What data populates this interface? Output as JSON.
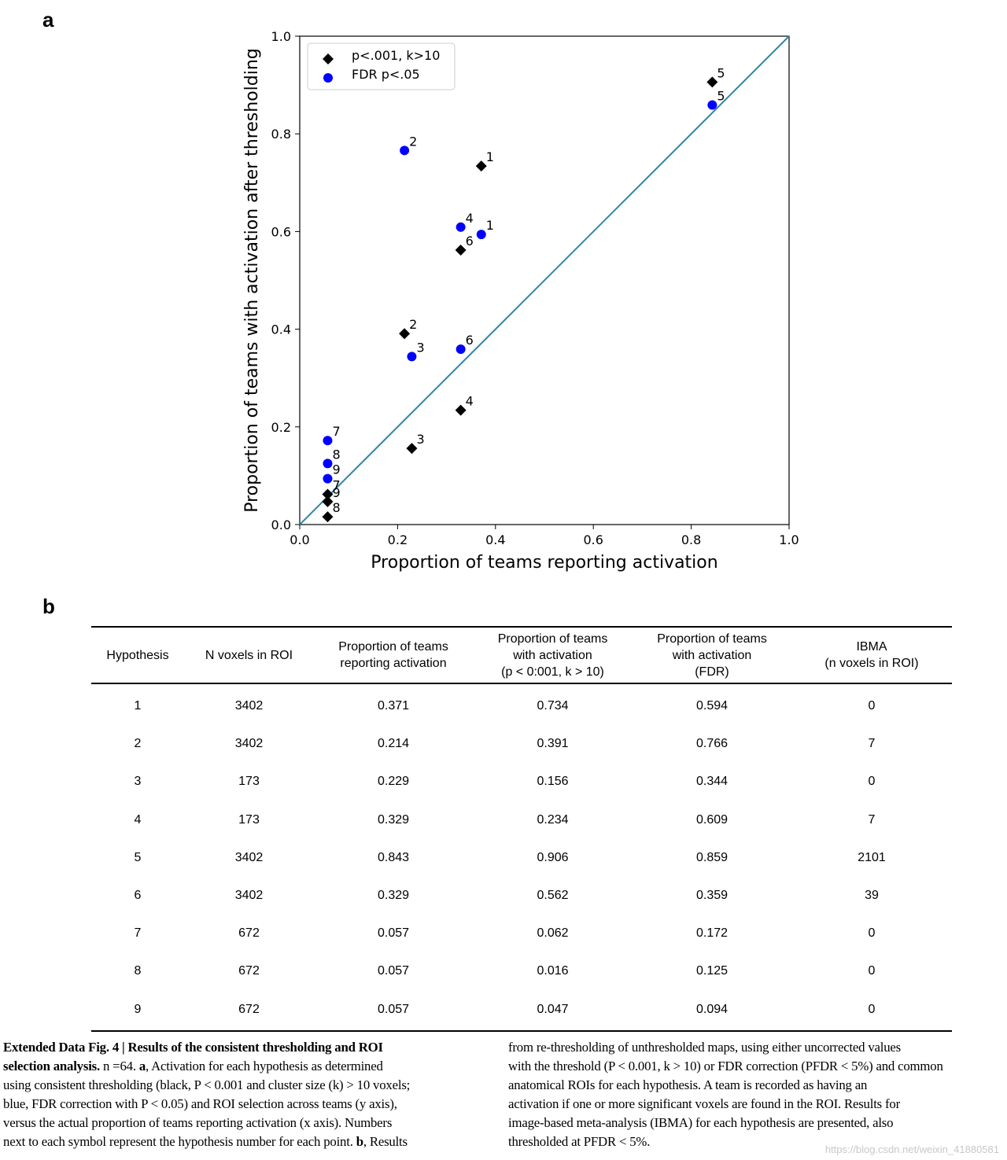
{
  "panel_labels": {
    "a": "a",
    "b": "b"
  },
  "colors": {
    "black_series": "#000000",
    "blue_series": "#0000ff",
    "identity_line": "#2e86ab"
  },
  "chart_data": {
    "type": "scatter",
    "xlabel": "Proportion of teams reporting activation",
    "ylabel": "Proportion of teams with activation after thresholding",
    "xlim": [
      0.0,
      1.0
    ],
    "ylim": [
      0.0,
      1.0
    ],
    "x_ticks": [
      "0.0",
      "0.2",
      "0.4",
      "0.6",
      "0.8",
      "1.0"
    ],
    "y_ticks": [
      "0.0",
      "0.2",
      "0.4",
      "0.6",
      "0.8",
      "1.0"
    ],
    "grid": false,
    "legend_position": "top-left",
    "identity_line": true,
    "series": [
      {
        "name": "p<.001, k>10",
        "marker": "diamond",
        "color": "#000000",
        "points": [
          {
            "label": "1",
            "x": 0.371,
            "y": 0.734
          },
          {
            "label": "2",
            "x": 0.214,
            "y": 0.391
          },
          {
            "label": "3",
            "x": 0.229,
            "y": 0.156
          },
          {
            "label": "4",
            "x": 0.329,
            "y": 0.234
          },
          {
            "label": "5",
            "x": 0.843,
            "y": 0.906
          },
          {
            "label": "6",
            "x": 0.329,
            "y": 0.562
          },
          {
            "label": "7",
            "x": 0.057,
            "y": 0.062
          },
          {
            "label": "8",
            "x": 0.057,
            "y": 0.016
          },
          {
            "label": "9",
            "x": 0.057,
            "y": 0.047
          }
        ]
      },
      {
        "name": "FDR p<.05",
        "marker": "circle",
        "color": "#0000ff",
        "points": [
          {
            "label": "1",
            "x": 0.371,
            "y": 0.594
          },
          {
            "label": "2",
            "x": 0.214,
            "y": 0.766
          },
          {
            "label": "3",
            "x": 0.229,
            "y": 0.344
          },
          {
            "label": "4",
            "x": 0.329,
            "y": 0.609
          },
          {
            "label": "5",
            "x": 0.843,
            "y": 0.859
          },
          {
            "label": "6",
            "x": 0.329,
            "y": 0.359
          },
          {
            "label": "7",
            "x": 0.057,
            "y": 0.172
          },
          {
            "label": "8",
            "x": 0.057,
            "y": 0.125
          },
          {
            "label": "9",
            "x": 0.057,
            "y": 0.094
          }
        ]
      }
    ]
  },
  "table": {
    "headers": [
      [
        "Hypothesis"
      ],
      [
        "N voxels in ROI"
      ],
      [
        "Proportion of teams",
        "reporting activation"
      ],
      [
        "Proportion of teams",
        "with activation",
        "(p < 0:001, k > 10)"
      ],
      [
        "Proportion of teams",
        "with activation",
        "(FDR)"
      ],
      [
        "IBMA",
        "(n voxels in ROI)"
      ]
    ],
    "rows": [
      [
        "1",
        "3402",
        "0.371",
        "0.734",
        "0.594",
        "0"
      ],
      [
        "2",
        "3402",
        "0.214",
        "0.391",
        "0.766",
        "7"
      ],
      [
        "3",
        "173",
        "0.229",
        "0.156",
        "0.344",
        "0"
      ],
      [
        "4",
        "173",
        "0.329",
        "0.234",
        "0.609",
        "7"
      ],
      [
        "5",
        "3402",
        "0.843",
        "0.906",
        "0.859",
        "2101"
      ],
      [
        "6",
        "3402",
        "0.329",
        "0.562",
        "0.359",
        "39"
      ],
      [
        "7",
        "672",
        "0.057",
        "0.062",
        "0.172",
        "0"
      ],
      [
        "8",
        "672",
        "0.057",
        "0.016",
        "0.125",
        "0"
      ],
      [
        "9",
        "672",
        "0.057",
        "0.047",
        "0.094",
        "0"
      ]
    ]
  },
  "caption": {
    "left_lines": [
      [
        {
          "t": "Extended Data Fig. 4 | Results of the consistent thresholding and ROI",
          "b": true
        }
      ],
      [
        {
          "t": "selection analysis. ",
          "b": true
        },
        {
          "t": "n =64. "
        },
        {
          "t": "a",
          "b": true
        },
        {
          "t": ", Activation for each hypothesis as determined"
        }
      ],
      [
        {
          "t": "using consistent thresholding (black, P < 0.001 and cluster size (k) > 10 voxels;"
        }
      ],
      [
        {
          "t": "blue, FDR correction with P < 0.05) and ROI selection across teams (y axis),"
        }
      ],
      [
        {
          "t": "versus the actual proportion of teams reporting activation (x axis). Numbers"
        }
      ],
      [
        {
          "t": "next to each symbol represent the hypothesis number for each point. "
        },
        {
          "t": "b",
          "b": true
        },
        {
          "t": ", Results"
        }
      ]
    ],
    "right_lines": [
      [
        {
          "t": "from re-thresholding of unthresholded maps, using either uncorrected values"
        }
      ],
      [
        {
          "t": "with the threshold (P < 0.001, k > 10) or FDR correction (PFDR < 5%) and common"
        }
      ],
      [
        {
          "t": "anatomical ROIs for each hypothesis. A team is recorded as having an"
        }
      ],
      [
        {
          "t": "activation if one or more significant voxels are found in the ROI. Results for"
        }
      ],
      [
        {
          "t": "image-based meta-analysis (IBMA) for each hypothesis are presented, also"
        }
      ],
      [
        {
          "t": "thresholded at PFDR < 5%."
        }
      ]
    ]
  },
  "watermark": "https://blog.csdn.net/weixin_41880581"
}
